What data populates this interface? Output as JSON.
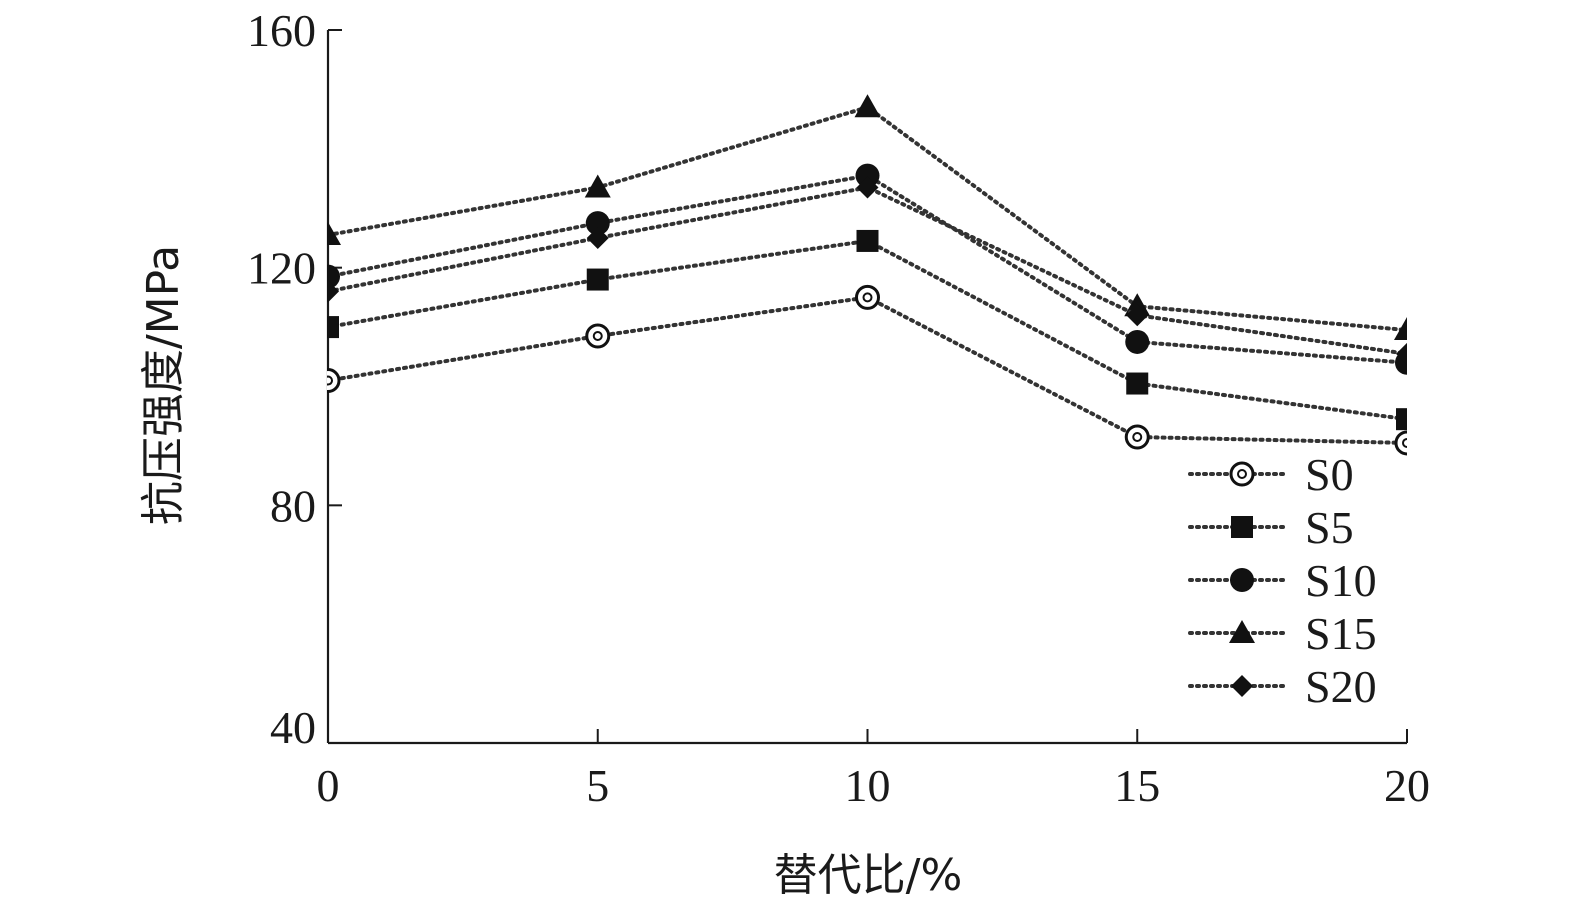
{
  "chart_data": {
    "type": "line",
    "title": "",
    "xlabel": "替代比/%",
    "ylabel": "抗压强度/MPa",
    "x": [
      0,
      5,
      10,
      15,
      20
    ],
    "xlim": [
      0,
      20
    ],
    "ylim": [
      40,
      160
    ],
    "xticks": [
      "0",
      "5",
      "10",
      "15",
      "20"
    ],
    "yticks": [
      "40",
      "80",
      "120",
      "160"
    ],
    "grid": false,
    "legend_position": "lower-right",
    "series": [
      {
        "name": "S0",
        "marker": "open-circle",
        "values": [
          101,
          108.5,
          115,
          91.5,
          90.5
        ]
      },
      {
        "name": "S5",
        "marker": "square",
        "values": [
          110,
          118,
          124.5,
          100.5,
          94.5
        ]
      },
      {
        "name": "S10",
        "marker": "circle",
        "values": [
          118.5,
          127.5,
          135.5,
          107.5,
          104
        ]
      },
      {
        "name": "S15",
        "marker": "triangle",
        "values": [
          125.5,
          133.5,
          147,
          113.5,
          109.5
        ]
      },
      {
        "name": "S20",
        "marker": "diamond",
        "values": [
          116,
          125,
          133.5,
          112,
          105.5
        ]
      }
    ]
  }
}
